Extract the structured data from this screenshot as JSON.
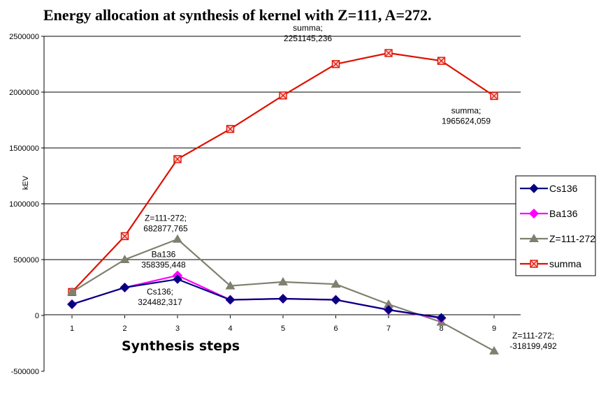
{
  "chart_data": {
    "type": "line",
    "title": "Energy allocation at synthesis of kernel with  Z=111, A=272.",
    "xlabel": "Synthesis steps",
    "ylabel": "kEV",
    "x": [
      1,
      2,
      3,
      4,
      5,
      6,
      7,
      8,
      9
    ],
    "x_tick_labels": [
      "1",
      "2",
      "3",
      "4",
      "5",
      "6",
      "7",
      "8",
      "9"
    ],
    "ylim": [
      -500000,
      2500000
    ],
    "y_ticks": [
      -500000,
      0,
      500000,
      1000000,
      1500000,
      2000000,
      2500000
    ],
    "y_tick_labels": [
      "-500000",
      "0",
      "500000",
      "1000000",
      "1500000",
      "2000000",
      "2500000"
    ],
    "grid": "horizontal",
    "legend_position": "right",
    "series": [
      {
        "name": "Cs136",
        "color": "#000080",
        "marker": "diamond",
        "values": [
          100000,
          250000,
          324482.317,
          140000,
          150000,
          140000,
          50000,
          -20000,
          null
        ]
      },
      {
        "name": "Ba136",
        "color": "#ff00ff",
        "marker": "square",
        "values": [
          100000,
          250000,
          358395.448,
          140000,
          150000,
          140000,
          50000,
          -25000,
          null
        ]
      },
      {
        "name": "Z=111-272",
        "color": "#808070",
        "marker": "triangle",
        "values": [
          210000,
          500000,
          682877.765,
          265000,
          300000,
          280000,
          100000,
          -60000,
          -318199.492
        ]
      },
      {
        "name": "summa",
        "color": "#dd1100",
        "marker": "boxx",
        "values": [
          210000,
          710000,
          1400000,
          1670000,
          1970000,
          2251145.236,
          2350000,
          2280000,
          1965624.059
        ]
      }
    ],
    "annotations": [
      {
        "id": "summa-peak",
        "lines": [
          "summa;",
          "2251145,236"
        ],
        "x": 6,
        "y": 2251145.236
      },
      {
        "id": "summa-end",
        "lines": [
          "summa;",
          "1965624,059"
        ],
        "x": 9,
        "y": 1965624.059
      },
      {
        "id": "z-peak",
        "lines": [
          "Z=111-272;",
          "682877,765"
        ],
        "x": 3,
        "y": 682877.765
      },
      {
        "id": "ba-peak",
        "lines": [
          "Ba136",
          "358395,448"
        ],
        "x": 3,
        "y": 358395.448
      },
      {
        "id": "cs-peak",
        "lines": [
          "Cs136;",
          "324482,317"
        ],
        "x": 3,
        "y": 324482.317
      },
      {
        "id": "z-end",
        "lines": [
          "Z=111-272;",
          "-318199,492"
        ],
        "x": 9,
        "y": -318199.492
      }
    ]
  }
}
